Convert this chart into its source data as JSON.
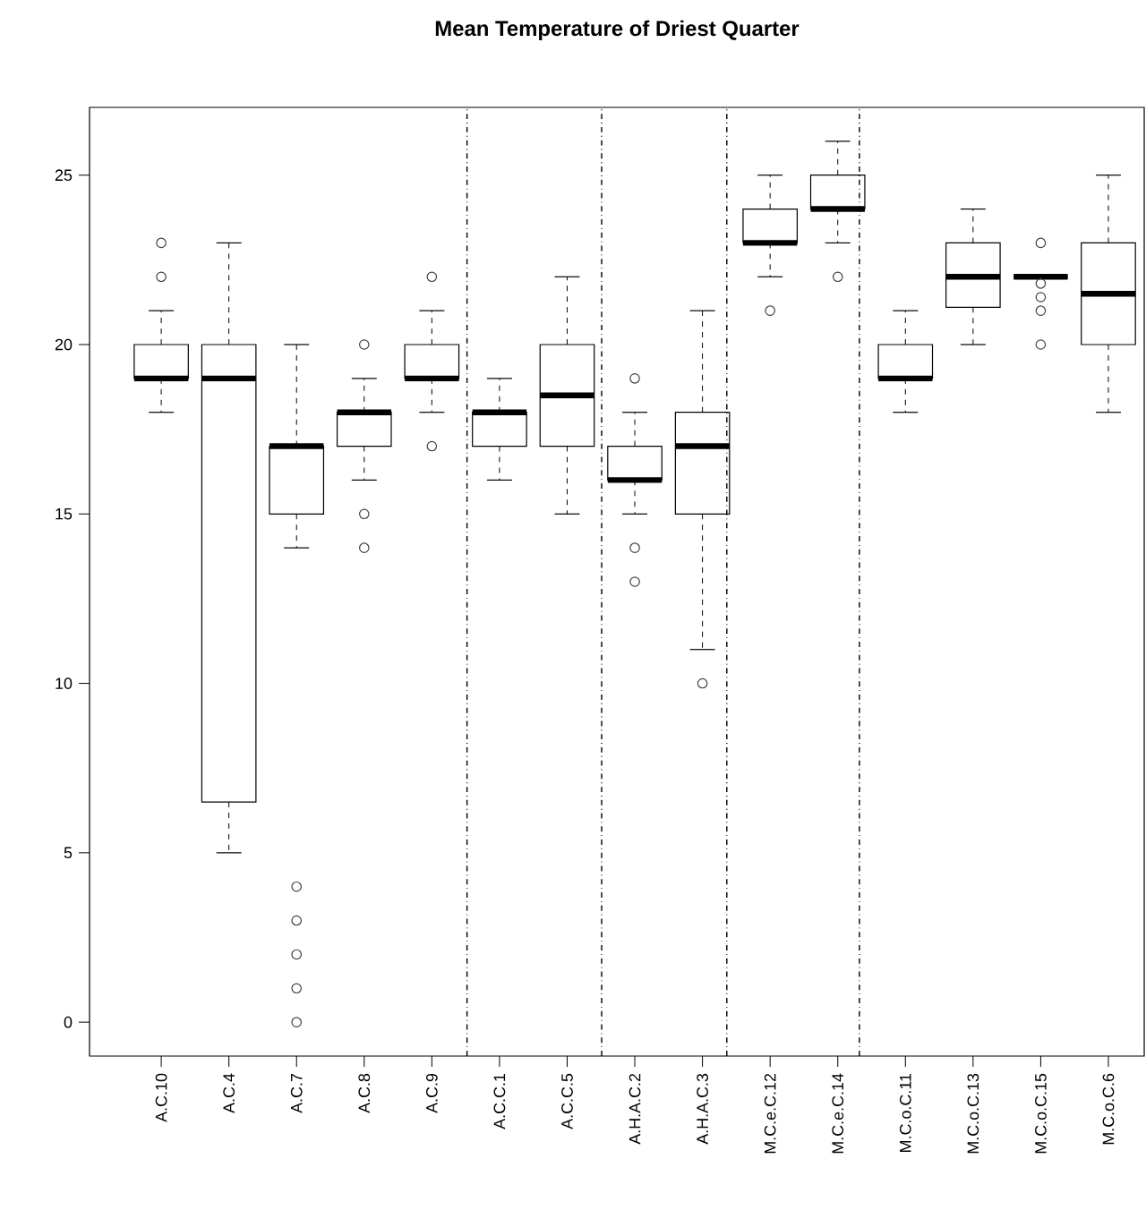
{
  "chart_data": {
    "type": "box",
    "title": "Mean Temperature of Driest Quarter",
    "categories": [
      "A.C.10",
      "A.C.4",
      "A.C.7",
      "A.C.8",
      "A.C.9",
      "A.C.C.1",
      "A.C.C.5",
      "A.H.A.C.2",
      "A.H.A.C.3",
      "M.C.e.C.12",
      "M.C.e.C.14",
      "M.C.o.C.11",
      "M.C.o.C.13",
      "M.C.o.C.15",
      "M.C.o.C.6"
    ],
    "boxes": [
      {
        "low": 18,
        "q1": 19,
        "median": 19,
        "q3": 20,
        "high": 21,
        "outliers": [
          22,
          23
        ]
      },
      {
        "low": 5,
        "q1": 6.5,
        "median": 19,
        "q3": 20,
        "high": 23
      },
      {
        "low": 14,
        "q1": 15,
        "median": 17,
        "q3": 17,
        "high": 20,
        "outliers": [
          4,
          3,
          2,
          1,
          0
        ]
      },
      {
        "low": 16,
        "q1": 17,
        "median": 18,
        "q3": 18,
        "high": 19,
        "outliers": [
          20,
          15,
          14
        ]
      },
      {
        "low": 18,
        "q1": 19,
        "median": 19,
        "q3": 20,
        "high": 21,
        "outliers": [
          22,
          17
        ]
      },
      {
        "low": 16,
        "q1": 17,
        "median": 18,
        "q3": 18,
        "high": 19
      },
      {
        "low": 15,
        "q1": 17,
        "median": 18.5,
        "q3": 20,
        "high": 22
      },
      {
        "low": 15,
        "q1": 16,
        "median": 16,
        "q3": 17,
        "high": 18,
        "outliers": [
          19,
          14,
          13
        ]
      },
      {
        "low": 11,
        "q1": 15,
        "median": 17,
        "q3": 18,
        "high": 21,
        "outliers": [
          10
        ]
      },
      {
        "low": 22,
        "q1": 23,
        "median": 23,
        "q3": 24,
        "high": 25,
        "outliers": [
          21
        ]
      },
      {
        "low": 23,
        "q1": 24,
        "median": 24,
        "q3": 25,
        "high": 26,
        "outliers": [
          22
        ]
      },
      {
        "low": 18,
        "q1": 19,
        "median": 19,
        "q3": 20,
        "high": 21
      },
      {
        "low": 20,
        "q1": 21.1,
        "median": 22,
        "q3": 23,
        "high": 24
      },
      {
        "low": 22,
        "q1": 22,
        "median": 22,
        "q3": 22,
        "high": 22,
        "outliers": [
          23,
          21.8,
          21.4,
          21,
          20
        ]
      },
      {
        "low": 18,
        "q1": 20,
        "median": 21.5,
        "q3": 23,
        "high": 25
      }
    ],
    "ylim": [
      -1,
      27
    ],
    "yticks": [
      0,
      5,
      10,
      15,
      20,
      25
    ],
    "marker": "circle"
  }
}
